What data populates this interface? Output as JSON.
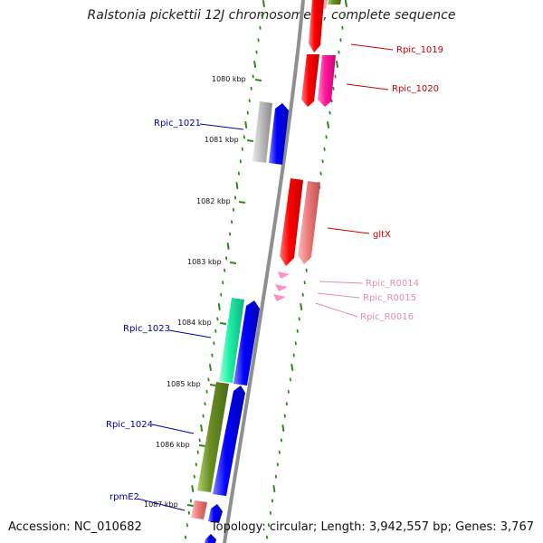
{
  "title": "Ralstonia pickettii 12J chromosome 1, complete sequence",
  "footer": {
    "accession": "Accession: NC_010682",
    "summary": "Topology: circular; Length: 3,942,557 bp; Genes: 3,767"
  },
  "colors": {
    "backbone": "#8f8f8f",
    "tick": "#2a8a1a",
    "label_blue": "#0000aa",
    "label_red": "#cc0000",
    "label_pink": "#e58bb3"
  },
  "kbp_labels": [
    "1080 kbp",
    "1081 kbp",
    "1082 kbp",
    "1083 kbp",
    "1084 kbp",
    "1085 kbp",
    "1086 kbp",
    "1087 kbp"
  ],
  "genes": [
    {
      "label": "Rpic_1019",
      "color": "#ff0000",
      "strand": "minus",
      "label_side": "right"
    },
    {
      "label": "Rpic_1020",
      "color": "#ff0000",
      "strand": "minus",
      "label_side": "right"
    },
    {
      "label": "Rpic_1021",
      "color": "#0000ee",
      "strand": "plus",
      "label_side": "left"
    },
    {
      "label": "gltX",
      "color": "#ff0000",
      "strand": "minus",
      "label_side": "right"
    },
    {
      "label": "Rpic_R0014",
      "color": "#ff8fc6",
      "strand": "minus",
      "label_side": "right"
    },
    {
      "label": "Rpic_R0015",
      "color": "#ff8fc6",
      "strand": "minus",
      "label_side": "right"
    },
    {
      "label": "Rpic_R0016",
      "color": "#ff8fc6",
      "strand": "minus",
      "label_side": "right"
    },
    {
      "label": "Rpic_1023",
      "color": "#0000ee",
      "strand": "plus",
      "label_side": "left"
    },
    {
      "label": "Rpic_1024",
      "color": "#0000ee",
      "strand": "plus",
      "label_side": "left"
    },
    {
      "label": "rpmE2",
      "color": "#0000ee",
      "strand": "plus",
      "label_side": "left"
    }
  ]
}
